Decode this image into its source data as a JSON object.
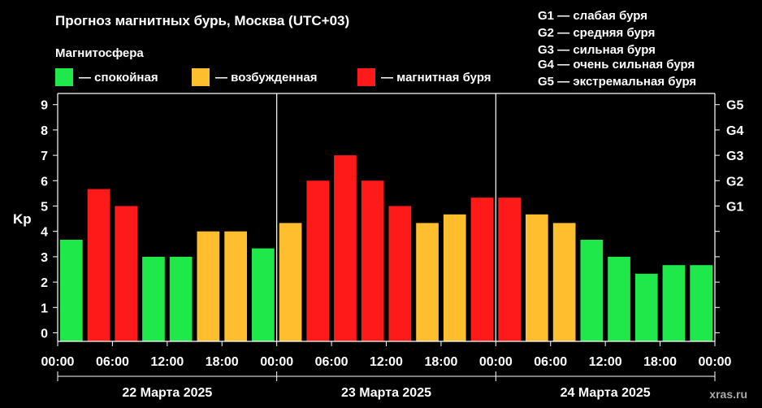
{
  "title": "Прогноз магнитных бурь, Москва (UTC+03)",
  "legend": {
    "heading": "Магнитосфера",
    "items": [
      {
        "label": "— спокойная",
        "color": "#1ee84a"
      },
      {
        "label": "— возбужденная",
        "color": "#ffbe2e"
      },
      {
        "label": "— магнитная буря",
        "color": "#ff1a1a"
      }
    ]
  },
  "storm_scale": [
    "G1 — слабая буря",
    "G2 — средняя буря",
    "G3 — сильная буря",
    "G4 — очень сильная буря",
    "G5 — экстремальная буря"
  ],
  "watermark": "xras.ru",
  "colors": {
    "quiet": "#1ee84a",
    "active": "#ffbe2e",
    "storm": "#ff1a1a",
    "background": "#000000",
    "axis": "#ffffff"
  },
  "chart_data": {
    "type": "bar",
    "title": "Прогноз магнитных бурь, Москва (UTC+03)",
    "ylabel": "Kp",
    "ylim": [
      0,
      9
    ],
    "yticks": [
      "0",
      "1",
      "2",
      "3",
      "4",
      "5",
      "6",
      "7",
      "8",
      "9"
    ],
    "right_ticks": [
      {
        "value": 5,
        "label": "G1"
      },
      {
        "value": 6,
        "label": "G2"
      },
      {
        "value": 7,
        "label": "G3"
      },
      {
        "value": 8,
        "label": "G4"
      },
      {
        "value": 9,
        "label": "G5"
      }
    ],
    "xtick_labels": [
      "00:00",
      "06:00",
      "12:00",
      "18:00",
      "00:00",
      "06:00",
      "12:00",
      "18:00",
      "00:00",
      "06:00",
      "12:00",
      "18:00",
      "00:00"
    ],
    "days": [
      "22 Марта 2025",
      "23 Марта 2025",
      "24 Марта 2025"
    ],
    "bar_interval_hours": 3,
    "values": [
      3.67,
      5.67,
      5.0,
      3.0,
      3.0,
      4.0,
      4.0,
      3.33,
      4.33,
      6.0,
      7.0,
      6.0,
      5.0,
      4.33,
      4.67,
      5.33,
      5.33,
      4.67,
      4.33,
      3.67,
      3.0,
      2.33,
      2.67,
      2.67
    ],
    "levels": [
      "quiet",
      "storm",
      "storm",
      "quiet",
      "quiet",
      "active",
      "active",
      "quiet",
      "active",
      "storm",
      "storm",
      "storm",
      "storm",
      "active",
      "active",
      "storm",
      "storm",
      "active",
      "active",
      "quiet",
      "quiet",
      "quiet",
      "quiet",
      "quiet"
    ]
  }
}
